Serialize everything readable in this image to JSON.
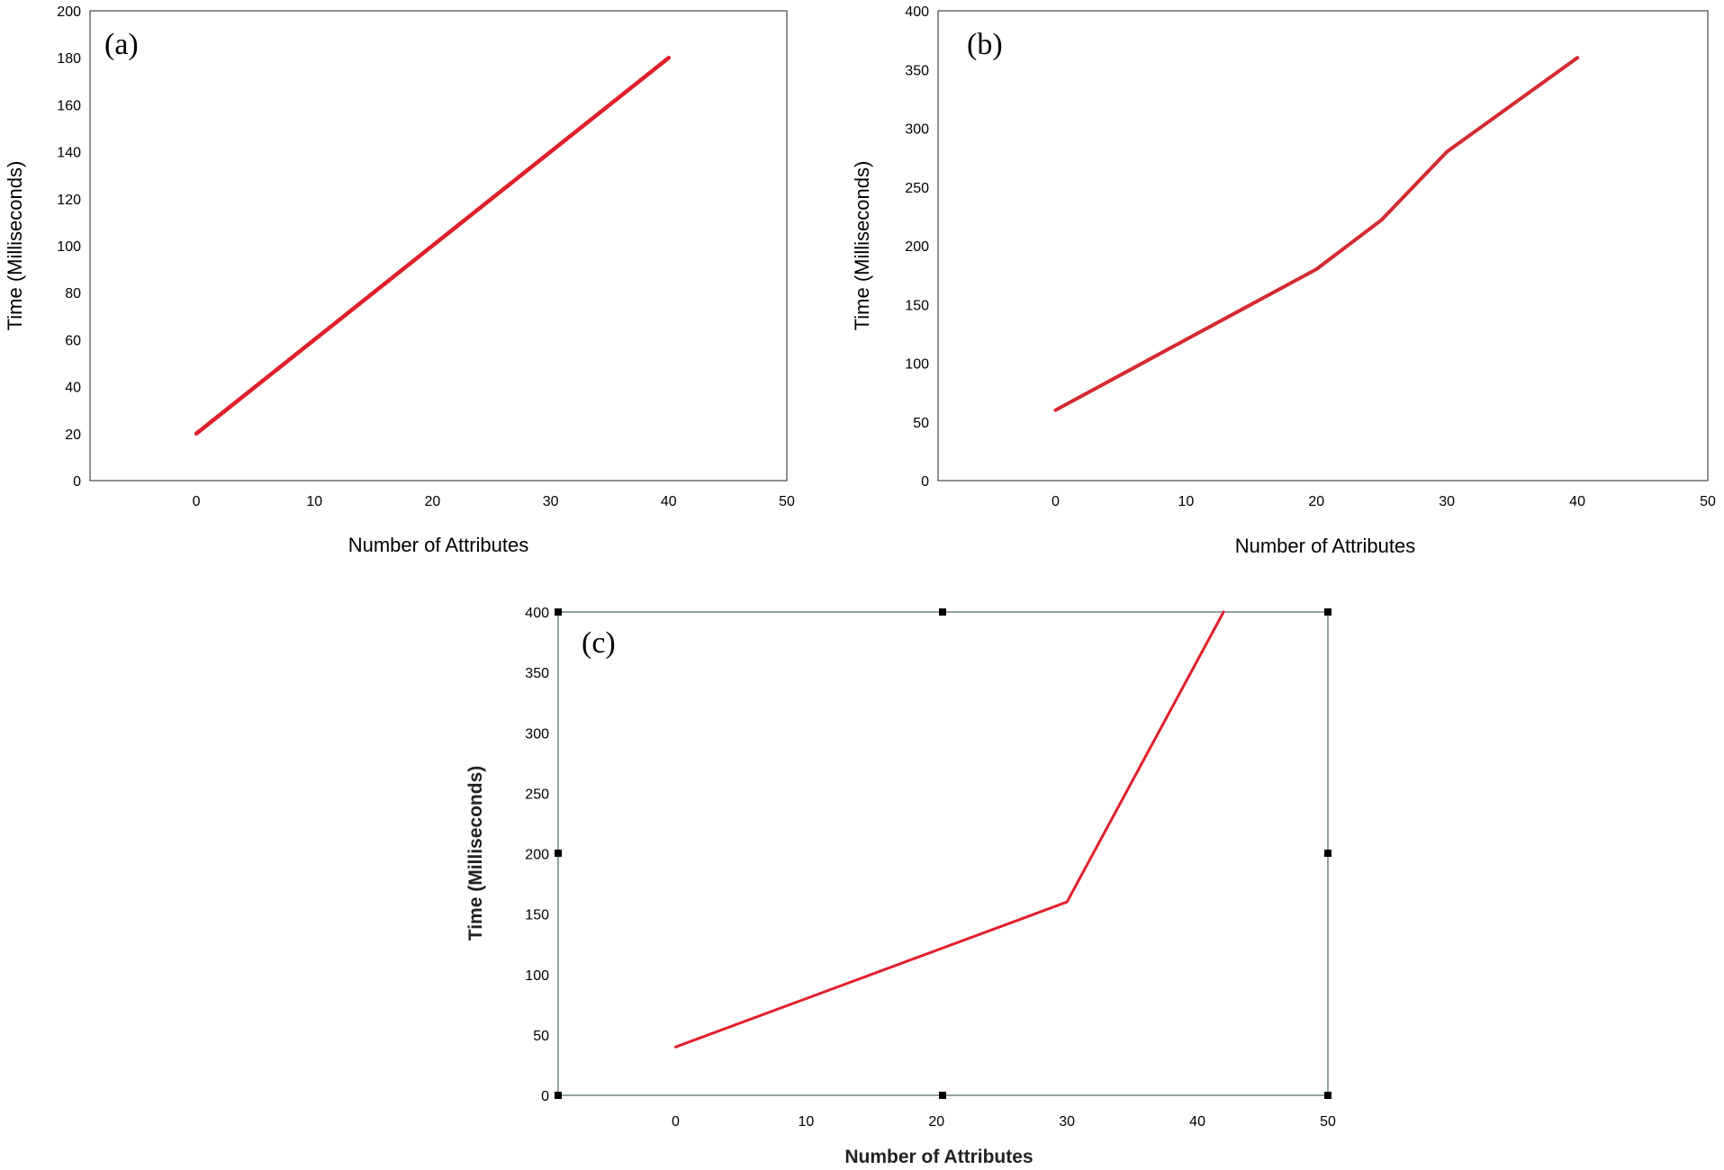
{
  "chart_data": [
    {
      "type": "line",
      "panel": "(a)",
      "xlabel": "Number of Attributes",
      "ylabel": "Time (Milliseconds)",
      "xlim": [
        -9,
        50
      ],
      "ylim": [
        0,
        200
      ],
      "x_ticks": [
        0,
        10,
        20,
        30,
        40,
        50
      ],
      "y_ticks": [
        0,
        20,
        40,
        60,
        80,
        100,
        120,
        140,
        160,
        180,
        200
      ],
      "line_color": "#e0202a",
      "series": [
        {
          "name": "Time",
          "x": [
            0,
            10,
            20,
            30,
            40
          ],
          "y": [
            20,
            60,
            100,
            140,
            180
          ]
        }
      ]
    },
    {
      "type": "line",
      "panel": "(b)",
      "xlabel": "Number of Attributes",
      "ylabel": "Time (Milliseconds)",
      "xlim": [
        -9,
        50
      ],
      "ylim": [
        0,
        400
      ],
      "x_ticks": [
        0,
        10,
        20,
        30,
        40,
        50
      ],
      "y_ticks": [
        0,
        50,
        100,
        150,
        200,
        250,
        300,
        350,
        400
      ],
      "line_color": "#d42a30",
      "series": [
        {
          "name": "Time",
          "x": [
            0,
            10,
            20,
            25,
            30,
            40
          ],
          "y": [
            60,
            120,
            180,
            222,
            280,
            360
          ]
        }
      ]
    },
    {
      "type": "line",
      "panel": "(c)",
      "xlabel": "Number of Attributes",
      "ylabel": "Time (Milliseconds)",
      "xlim": [
        -9,
        50
      ],
      "ylim": [
        0,
        400
      ],
      "x_ticks": [
        0,
        10,
        20,
        30,
        40,
        50
      ],
      "y_ticks": [
        0,
        50,
        100,
        150,
        200,
        250,
        300,
        350,
        400
      ],
      "line_color": "#e0202a",
      "series": [
        {
          "name": "Time",
          "x": [
            0,
            10,
            20,
            30,
            42
          ],
          "y": [
            40,
            80,
            120,
            160,
            400
          ]
        }
      ]
    }
  ]
}
